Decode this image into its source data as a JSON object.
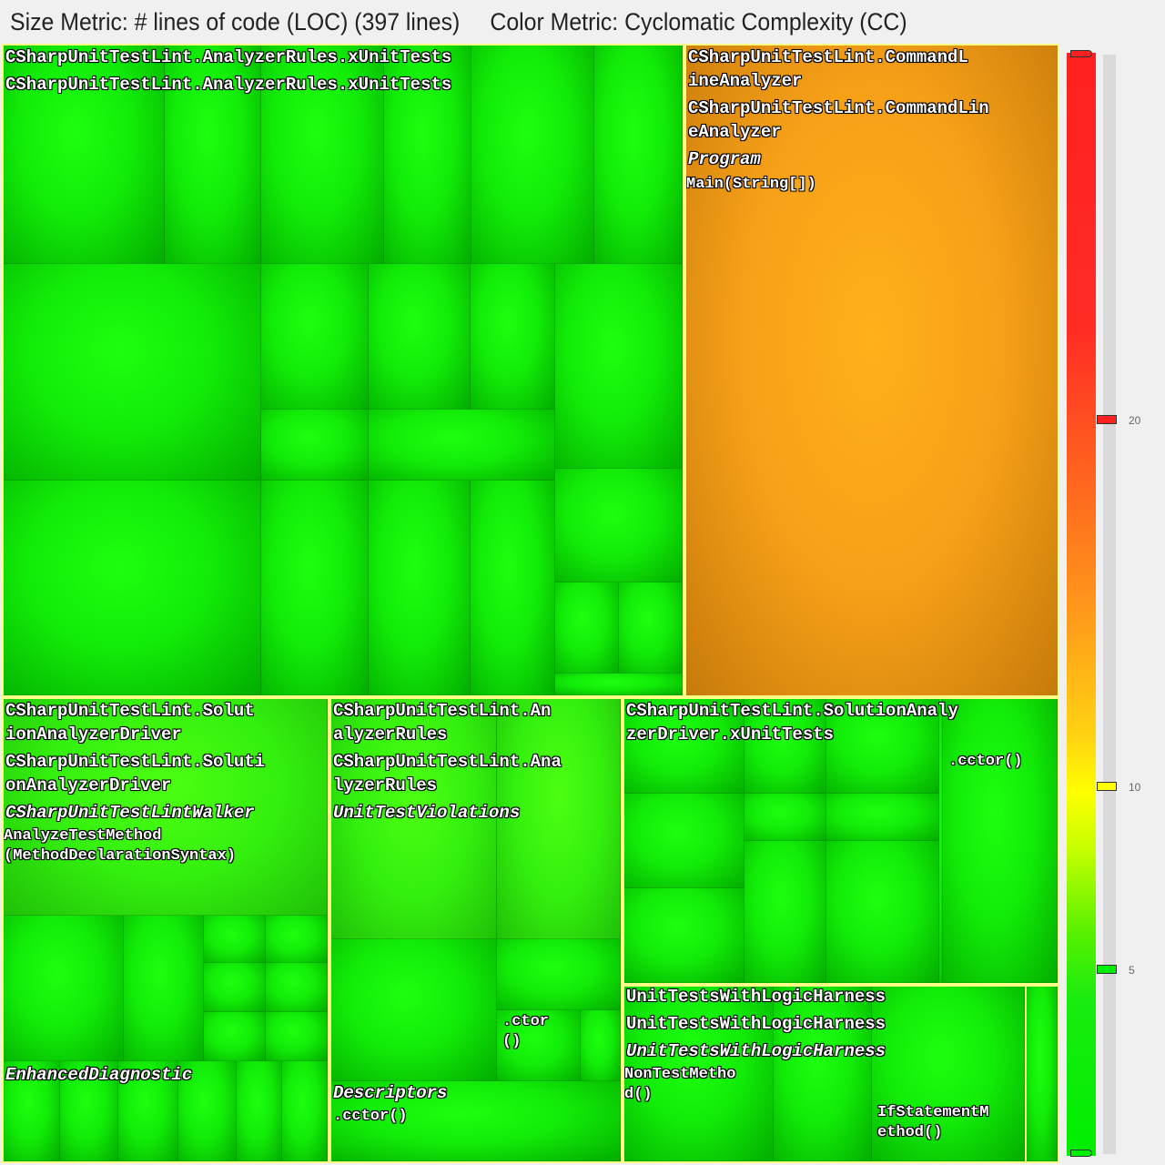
{
  "header": {
    "size_metric": "Size Metric: # lines of code (LOC) (397 lines)",
    "color_metric": "Color Metric: Cyclomatic Complexity (CC)"
  },
  "treemap": {
    "xunit": {
      "label1": "CSharpUnitTestLint.AnalyzerRules.xUnitTests",
      "label2": "CSharpUnitTestLint.AnalyzerRules.xUnitTests"
    },
    "cli": {
      "label1": "CSharpUnitTestLint.CommandL\nineAnalyzer",
      "label2": "CSharpUnitTestLint.CommandLin\neAnalyzer",
      "class": "Program",
      "method": "Main(String[])"
    },
    "driver": {
      "label1": "CSharpUnitTestLint.Solut\nionAnalyzerDriver",
      "label2": "CSharpUnitTestLint.Soluti\nonAnalyzerDriver",
      "class": "CSharpUnitTestLintWalker",
      "method": "AnalyzeTestMethod\n(MethodDeclarationSyntax)",
      "class2": "EnhancedDiagnostic"
    },
    "rules": {
      "label1": "CSharpUnitTestLint.An\nalyzerRules",
      "label2": "CSharpUnitTestLint.Ana\nlyzerRules",
      "class": "UnitTestViolations",
      "ctor": ".ctor\n()",
      "class2": "Descriptors",
      "cctor": ".cctor()"
    },
    "driver_tests": {
      "label1": "CSharpUnitTestLint.SolutionAnaly\nzerDriver.xUnitTests",
      "cctor": ".cctor()"
    },
    "harness": {
      "label1": "UnitTestsWithLogicHarness",
      "label2": "UnitTestsWithLogicHarness",
      "class": "UnitTestsWithLogicHarness",
      "method1": "NonTestMetho\nd()",
      "method2": "IfStatementM\nethod()"
    }
  },
  "scale": {
    "ticks": [
      "20",
      "10",
      "5"
    ],
    "values": [
      20,
      10,
      5
    ],
    "colors": {
      "high": "#ff2020",
      "mid": "#ffff00",
      "low": "#00ee00",
      "orange": "#f6a018"
    }
  }
}
